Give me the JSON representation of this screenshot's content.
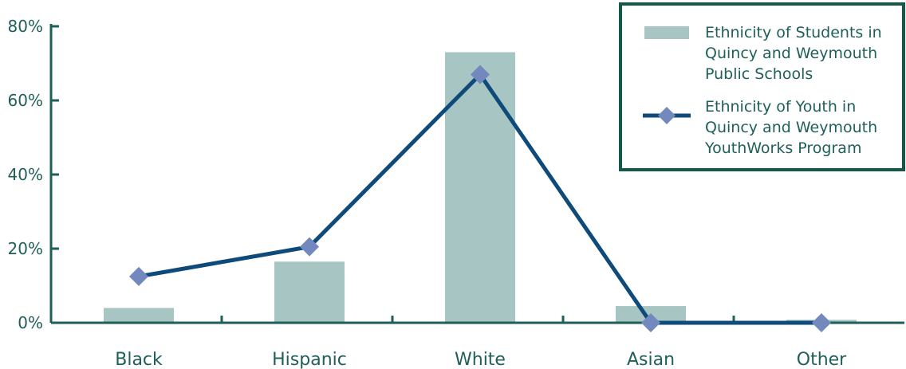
{
  "chart_data": {
    "type": "bar",
    "categories": [
      "Black",
      "Hispanic",
      "White",
      "Asian",
      "Other"
    ],
    "y_ticks": [
      "0%",
      "20%",
      "40%",
      "60%",
      "80%"
    ],
    "ylim": [
      0,
      80
    ],
    "grid": false,
    "legend_position": "top-right",
    "series": [
      {
        "type": "bar",
        "name": "Ethnicity of Students in Quincy and Weymouth Public Schools",
        "name_lines": [
          "Ethnicity of Students in",
          "Quincy and Weymouth",
          "Public Schools"
        ],
        "values": [
          4,
          16.5,
          73,
          4.5,
          0.8
        ],
        "color": "#a6c5c3"
      },
      {
        "type": "line",
        "name": "Ethnicity of Youth in Quincy and Weymouth YouthWorks Program",
        "name_lines": [
          "Ethnicity of Youth in",
          "Quincy and Weymouth",
          "YouthWorks Program"
        ],
        "values": [
          12.5,
          20.5,
          67,
          0,
          0
        ],
        "color": "#0e4a7a",
        "marker_color": "#7389bd"
      }
    ],
    "colors": {
      "axis": "#1f5f5a",
      "legend_border": "#12594a"
    }
  }
}
